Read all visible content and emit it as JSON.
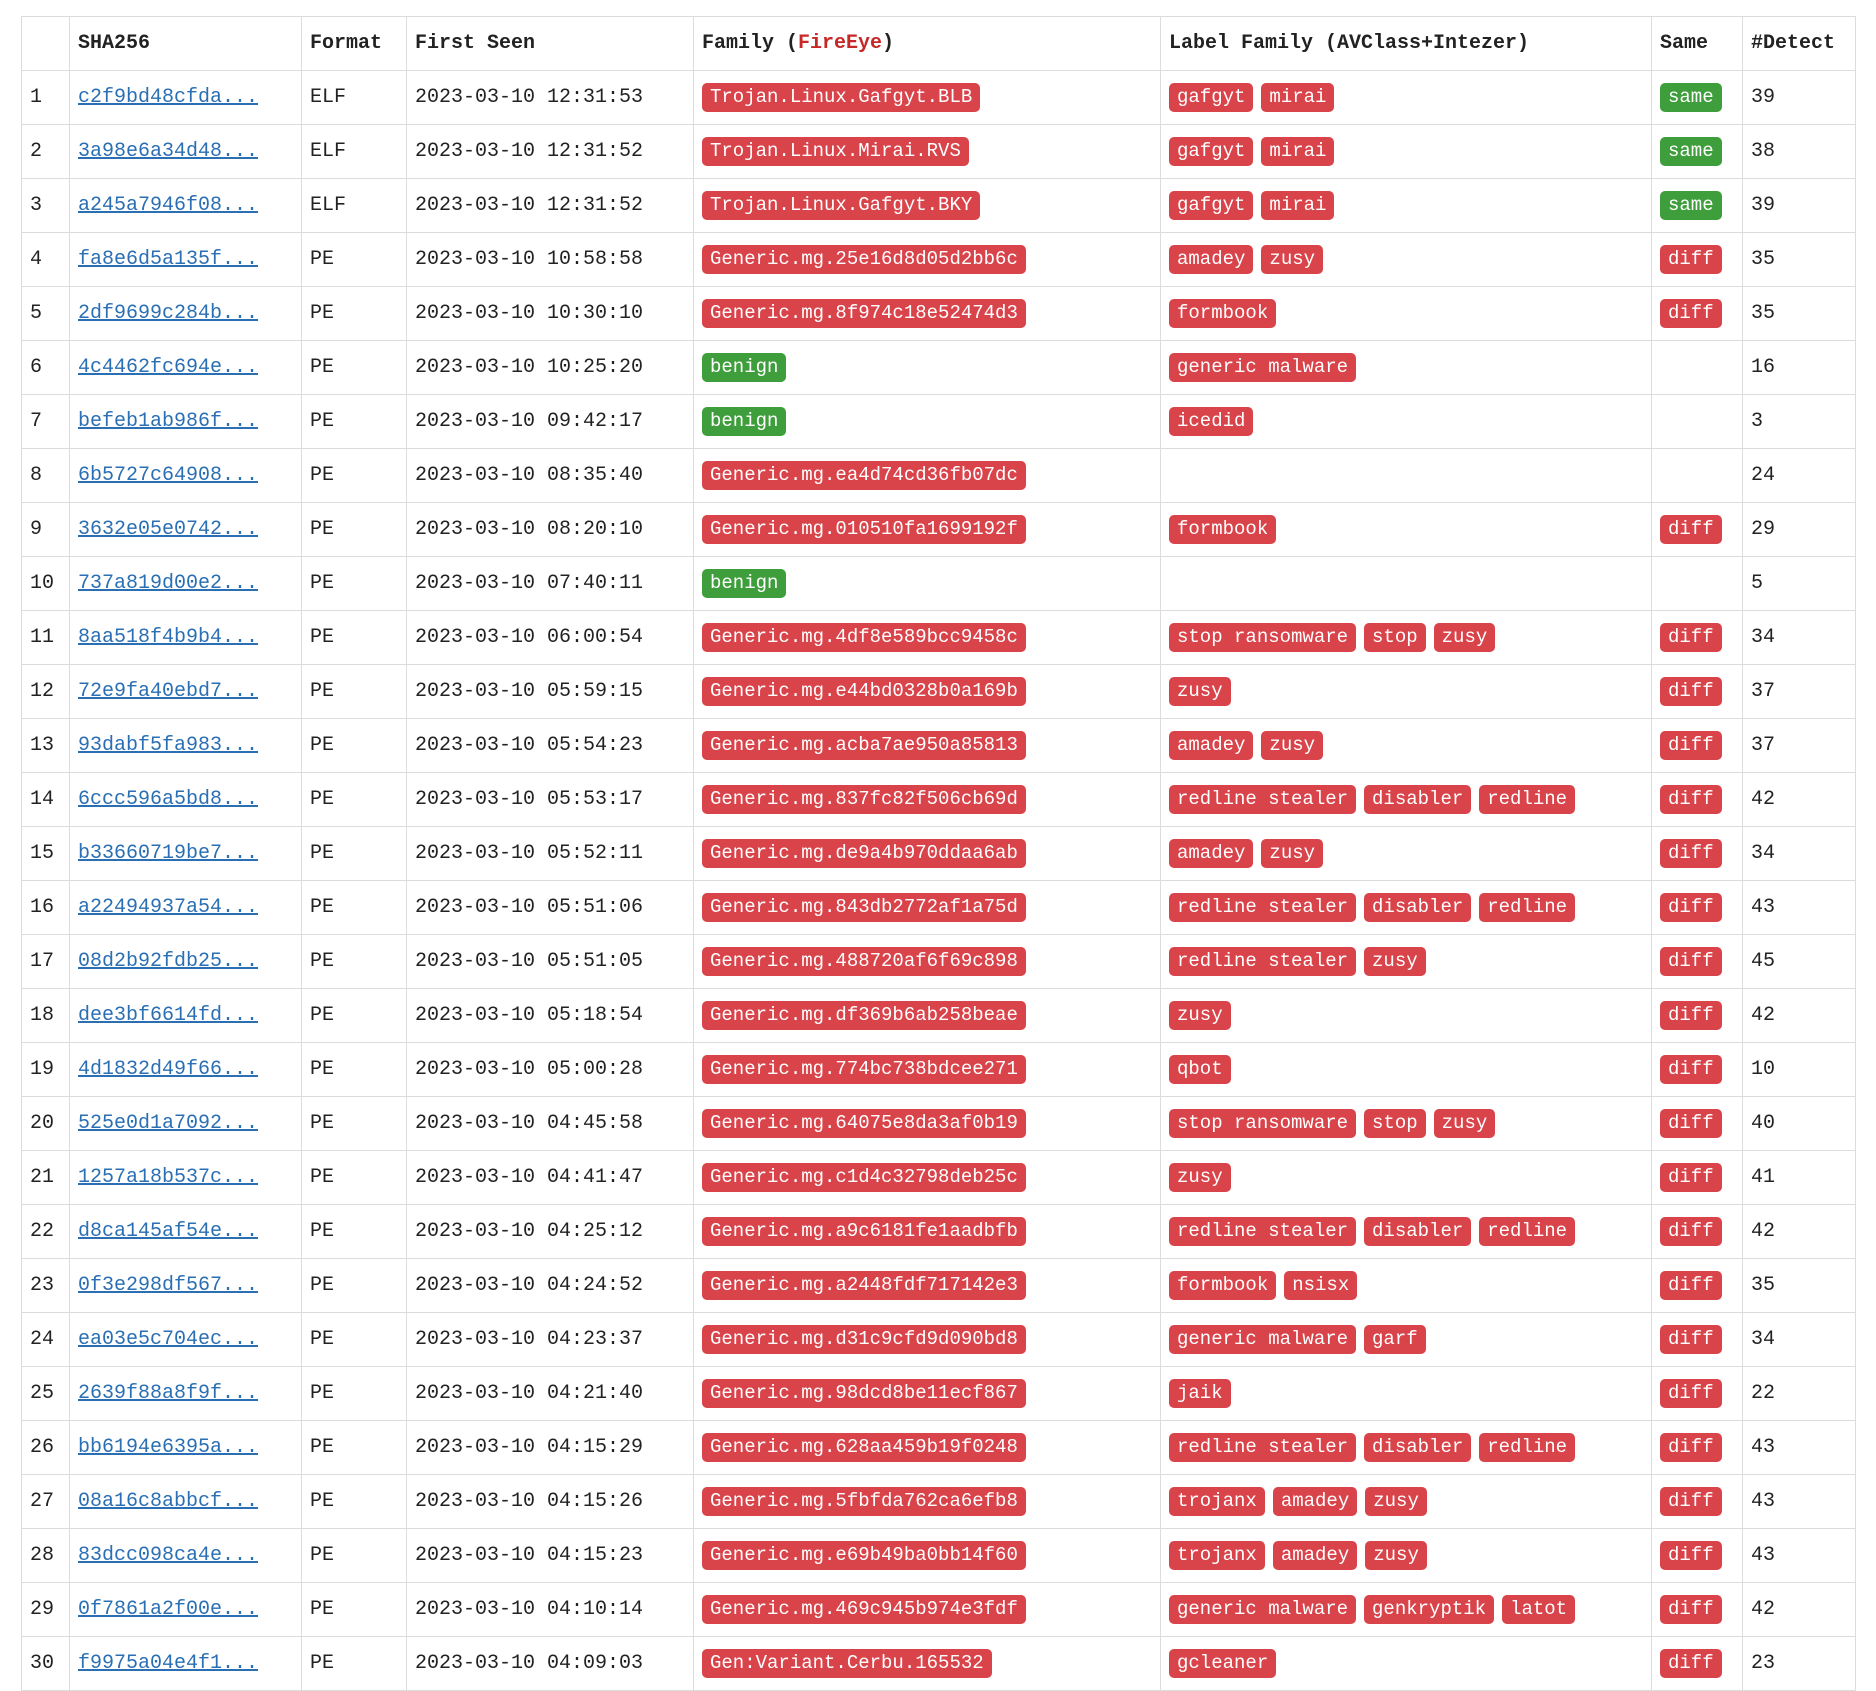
{
  "table": {
    "headers": {
      "index": "",
      "sha256": "SHA256",
      "format": "Format",
      "first_seen": "First Seen",
      "family_prefix": "Family (",
      "family_highlight": "FireEye",
      "family_suffix": ")",
      "label_family": "Label Family (AVClass+Intezer)",
      "same": "Same",
      "detect": "#Detect"
    },
    "rows": [
      {
        "n": "1",
        "sha": "c2f9bd48cfda...",
        "format": "ELF",
        "seen": "2023-03-10 12:31:53",
        "family": "Trojan.Linux.Gafgyt.BLB",
        "family_color": "red",
        "labels": [
          "gafgyt",
          "mirai"
        ],
        "same": "same",
        "same_color": "green",
        "detect": "39"
      },
      {
        "n": "2",
        "sha": "3a98e6a34d48...",
        "format": "ELF",
        "seen": "2023-03-10 12:31:52",
        "family": "Trojan.Linux.Mirai.RVS",
        "family_color": "red",
        "labels": [
          "gafgyt",
          "mirai"
        ],
        "same": "same",
        "same_color": "green",
        "detect": "38"
      },
      {
        "n": "3",
        "sha": "a245a7946f08...",
        "format": "ELF",
        "seen": "2023-03-10 12:31:52",
        "family": "Trojan.Linux.Gafgyt.BKY",
        "family_color": "red",
        "labels": [
          "gafgyt",
          "mirai"
        ],
        "same": "same",
        "same_color": "green",
        "detect": "39"
      },
      {
        "n": "4",
        "sha": "fa8e6d5a135f...",
        "format": "PE",
        "seen": "2023-03-10 10:58:58",
        "family": "Generic.mg.25e16d8d05d2bb6c",
        "family_color": "red",
        "labels": [
          "amadey",
          "zusy"
        ],
        "same": "diff",
        "same_color": "red",
        "detect": "35"
      },
      {
        "n": "5",
        "sha": "2df9699c284b...",
        "format": "PE",
        "seen": "2023-03-10 10:30:10",
        "family": "Generic.mg.8f974c18e52474d3",
        "family_color": "red",
        "labels": [
          "formbook"
        ],
        "same": "diff",
        "same_color": "red",
        "detect": "35"
      },
      {
        "n": "6",
        "sha": "4c4462fc694e...",
        "format": "PE",
        "seen": "2023-03-10 10:25:20",
        "family": "benign",
        "family_color": "green",
        "labels": [
          "generic malware"
        ],
        "same": "",
        "same_color": "",
        "detect": "16"
      },
      {
        "n": "7",
        "sha": "befeb1ab986f...",
        "format": "PE",
        "seen": "2023-03-10 09:42:17",
        "family": "benign",
        "family_color": "green",
        "labels": [
          "icedid"
        ],
        "same": "",
        "same_color": "",
        "detect": "3"
      },
      {
        "n": "8",
        "sha": "6b5727c64908...",
        "format": "PE",
        "seen": "2023-03-10 08:35:40",
        "family": "Generic.mg.ea4d74cd36fb07dc",
        "family_color": "red",
        "labels": [],
        "same": "",
        "same_color": "",
        "detect": "24"
      },
      {
        "n": "9",
        "sha": "3632e05e0742...",
        "format": "PE",
        "seen": "2023-03-10 08:20:10",
        "family": "Generic.mg.010510fa1699192f",
        "family_color": "red",
        "labels": [
          "formbook"
        ],
        "same": "diff",
        "same_color": "red",
        "detect": "29"
      },
      {
        "n": "10",
        "sha": "737a819d00e2...",
        "format": "PE",
        "seen": "2023-03-10 07:40:11",
        "family": "benign",
        "family_color": "green",
        "labels": [],
        "same": "",
        "same_color": "",
        "detect": "5"
      },
      {
        "n": "11",
        "sha": "8aa518f4b9b4...",
        "format": "PE",
        "seen": "2023-03-10 06:00:54",
        "family": "Generic.mg.4df8e589bcc9458c",
        "family_color": "red",
        "labels": [
          "stop ransomware",
          "stop",
          "zusy"
        ],
        "same": "diff",
        "same_color": "red",
        "detect": "34"
      },
      {
        "n": "12",
        "sha": "72e9fa40ebd7...",
        "format": "PE",
        "seen": "2023-03-10 05:59:15",
        "family": "Generic.mg.e44bd0328b0a169b",
        "family_color": "red",
        "labels": [
          "zusy"
        ],
        "same": "diff",
        "same_color": "red",
        "detect": "37"
      },
      {
        "n": "13",
        "sha": "93dabf5fa983...",
        "format": "PE",
        "seen": "2023-03-10 05:54:23",
        "family": "Generic.mg.acba7ae950a85813",
        "family_color": "red",
        "labels": [
          "amadey",
          "zusy"
        ],
        "same": "diff",
        "same_color": "red",
        "detect": "37"
      },
      {
        "n": "14",
        "sha": "6ccc596a5bd8...",
        "format": "PE",
        "seen": "2023-03-10 05:53:17",
        "family": "Generic.mg.837fc82f506cb69d",
        "family_color": "red",
        "labels": [
          "redline stealer",
          "disabler",
          "redline"
        ],
        "same": "diff",
        "same_color": "red",
        "detect": "42"
      },
      {
        "n": "15",
        "sha": "b33660719be7...",
        "format": "PE",
        "seen": "2023-03-10 05:52:11",
        "family": "Generic.mg.de9a4b970ddaa6ab",
        "family_color": "red",
        "labels": [
          "amadey",
          "zusy"
        ],
        "same": "diff",
        "same_color": "red",
        "detect": "34"
      },
      {
        "n": "16",
        "sha": "a22494937a54...",
        "format": "PE",
        "seen": "2023-03-10 05:51:06",
        "family": "Generic.mg.843db2772af1a75d",
        "family_color": "red",
        "labels": [
          "redline stealer",
          "disabler",
          "redline"
        ],
        "same": "diff",
        "same_color": "red",
        "detect": "43"
      },
      {
        "n": "17",
        "sha": "08d2b92fdb25...",
        "format": "PE",
        "seen": "2023-03-10 05:51:05",
        "family": "Generic.mg.488720af6f69c898",
        "family_color": "red",
        "labels": [
          "redline stealer",
          "zusy"
        ],
        "same": "diff",
        "same_color": "red",
        "detect": "45"
      },
      {
        "n": "18",
        "sha": "dee3bf6614fd...",
        "format": "PE",
        "seen": "2023-03-10 05:18:54",
        "family": "Generic.mg.df369b6ab258beae",
        "family_color": "red",
        "labels": [
          "zusy"
        ],
        "same": "diff",
        "same_color": "red",
        "detect": "42"
      },
      {
        "n": "19",
        "sha": "4d1832d49f66...",
        "format": "PE",
        "seen": "2023-03-10 05:00:28",
        "family": "Generic.mg.774bc738bdcee271",
        "family_color": "red",
        "labels": [
          "qbot"
        ],
        "same": "diff",
        "same_color": "red",
        "detect": "10"
      },
      {
        "n": "20",
        "sha": "525e0d1a7092...",
        "format": "PE",
        "seen": "2023-03-10 04:45:58",
        "family": "Generic.mg.64075e8da3af0b19",
        "family_color": "red",
        "labels": [
          "stop ransomware",
          "stop",
          "zusy"
        ],
        "same": "diff",
        "same_color": "red",
        "detect": "40"
      },
      {
        "n": "21",
        "sha": "1257a18b537c...",
        "format": "PE",
        "seen": "2023-03-10 04:41:47",
        "family": "Generic.mg.c1d4c32798deb25c",
        "family_color": "red",
        "labels": [
          "zusy"
        ],
        "same": "diff",
        "same_color": "red",
        "detect": "41"
      },
      {
        "n": "22",
        "sha": "d8ca145af54e...",
        "format": "PE",
        "seen": "2023-03-10 04:25:12",
        "family": "Generic.mg.a9c6181fe1aadbfb",
        "family_color": "red",
        "labels": [
          "redline stealer",
          "disabler",
          "redline"
        ],
        "same": "diff",
        "same_color": "red",
        "detect": "42"
      },
      {
        "n": "23",
        "sha": "0f3e298df567...",
        "format": "PE",
        "seen": "2023-03-10 04:24:52",
        "family": "Generic.mg.a2448fdf717142e3",
        "family_color": "red",
        "labels": [
          "formbook",
          "nsisx"
        ],
        "same": "diff",
        "same_color": "red",
        "detect": "35"
      },
      {
        "n": "24",
        "sha": "ea03e5c704ec...",
        "format": "PE",
        "seen": "2023-03-10 04:23:37",
        "family": "Generic.mg.d31c9cfd9d090bd8",
        "family_color": "red",
        "labels": [
          "generic malware",
          "garf"
        ],
        "same": "diff",
        "same_color": "red",
        "detect": "34"
      },
      {
        "n": "25",
        "sha": "2639f88a8f9f...",
        "format": "PE",
        "seen": "2023-03-10 04:21:40",
        "family": "Generic.mg.98dcd8be11ecf867",
        "family_color": "red",
        "labels": [
          "jaik"
        ],
        "same": "diff",
        "same_color": "red",
        "detect": "22"
      },
      {
        "n": "26",
        "sha": "bb6194e6395a...",
        "format": "PE",
        "seen": "2023-03-10 04:15:29",
        "family": "Generic.mg.628aa459b19f0248",
        "family_color": "red",
        "labels": [
          "redline stealer",
          "disabler",
          "redline"
        ],
        "same": "diff",
        "same_color": "red",
        "detect": "43"
      },
      {
        "n": "27",
        "sha": "08a16c8abbcf...",
        "format": "PE",
        "seen": "2023-03-10 04:15:26",
        "family": "Generic.mg.5fbfda762ca6efb8",
        "family_color": "red",
        "labels": [
          "trojanx",
          "amadey",
          "zusy"
        ],
        "same": "diff",
        "same_color": "red",
        "detect": "43"
      },
      {
        "n": "28",
        "sha": "83dcc098ca4e...",
        "format": "PE",
        "seen": "2023-03-10 04:15:23",
        "family": "Generic.mg.e69b49ba0bb14f60",
        "family_color": "red",
        "labels": [
          "trojanx",
          "amadey",
          "zusy"
        ],
        "same": "diff",
        "same_color": "red",
        "detect": "43"
      },
      {
        "n": "29",
        "sha": "0f7861a2f00e...",
        "format": "PE",
        "seen": "2023-03-10 04:10:14",
        "family": "Generic.mg.469c945b974e3fdf",
        "family_color": "red",
        "labels": [
          "generic malware",
          "genkryptik",
          "latot"
        ],
        "same": "diff",
        "same_color": "red",
        "detect": "42"
      },
      {
        "n": "30",
        "sha": "f9975a04e4f1...",
        "format": "PE",
        "seen": "2023-03-10 04:09:03",
        "family": "Gen:Variant.Cerbu.165532",
        "family_color": "red",
        "labels": [
          "gcleaner"
        ],
        "same": "diff",
        "same_color": "red",
        "detect": "23"
      }
    ]
  }
}
